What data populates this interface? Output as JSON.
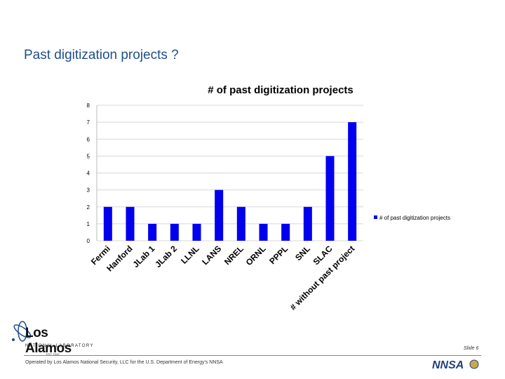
{
  "slide": {
    "title": "Past digitization projects ?",
    "footer": "Operated by Los Alamos National Security, LLC for the U.S. Department of Energy's NNSA",
    "slide_number": "Slide 6"
  },
  "logos": {
    "lanl": {
      "name": "Los Alamos",
      "subtitle": "NATIONAL LABORATORY",
      "est": "EST. 1943"
    },
    "nnsa": {
      "text": "NNSA"
    }
  },
  "chart_data": {
    "type": "bar",
    "title": "# of past digitization projects",
    "categories": [
      "Fermi",
      "Hanford",
      "JLab 1",
      "JLab 2",
      "LLNL",
      "LANS",
      "NREL",
      "ORNL",
      "PPPL",
      "SNL",
      "SLAC",
      "# without past project"
    ],
    "series": [
      {
        "name": "# of past digitization projects",
        "values": [
          2,
          2,
          1,
          1,
          1,
          3,
          2,
          1,
          1,
          2,
          5,
          7
        ]
      }
    ],
    "ylim": [
      0,
      8
    ],
    "yticks": [
      0,
      1,
      2,
      3,
      4,
      5,
      6,
      7,
      8
    ],
    "xlabel": "",
    "ylabel": "",
    "grid": true,
    "legend_position": "right",
    "bar_color": "#0000ee"
  }
}
